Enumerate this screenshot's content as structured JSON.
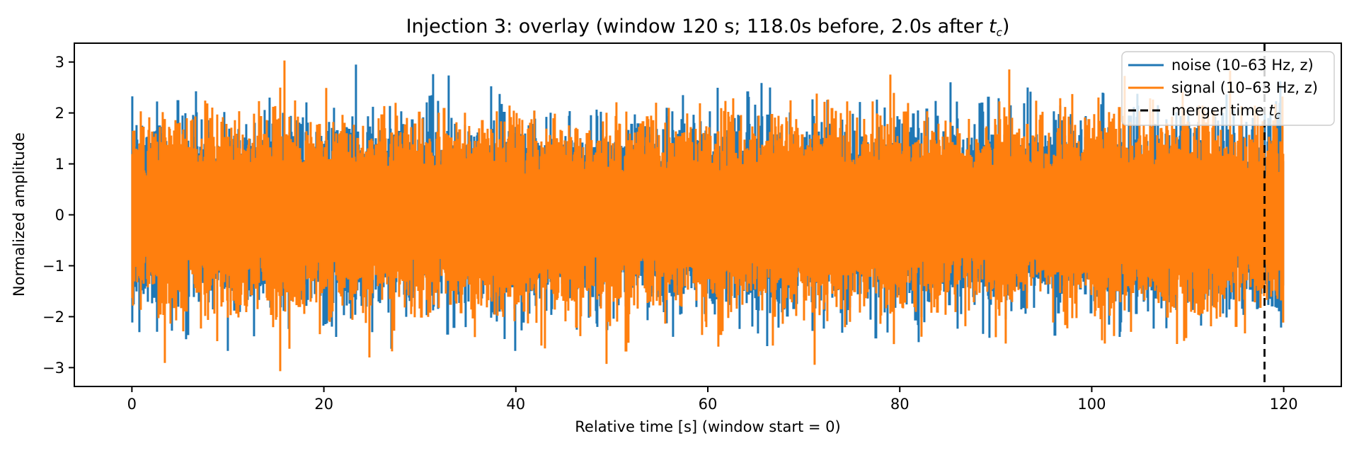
{
  "figure": {
    "title": {
      "before": "Injection 3: overlay (window 120 s; 118.0s before, 2.0s after ",
      "var": "t",
      "sub": "c",
      "after": ")"
    },
    "xlabel": "Relative time [s] (window start = 0)",
    "ylabel": "Normalized amplitude"
  },
  "legend": {
    "entries": [
      {
        "label": "noise (10–63 Hz, z)",
        "color": "#1f77b4",
        "style": "solid"
      },
      {
        "label": "signal (10–63 Hz, z)",
        "color": "#ff7f0e",
        "style": "solid"
      },
      {
        "label_before": "merger time ",
        "label_var": "t",
        "label_sub": "c",
        "color": "#000000",
        "style": "dashed"
      }
    ]
  },
  "chart_data": {
    "type": "line",
    "title": "Injection 3: overlay (window 120 s; 118.0s before, 2.0s after t_c)",
    "xlabel": "Relative time [s] (window start = 0)",
    "ylabel": "Normalized amplitude",
    "xticks": [
      0,
      20,
      40,
      60,
      80,
      100,
      120
    ],
    "yticks": [
      -3,
      -2,
      -1,
      0,
      1,
      2,
      3
    ],
    "xlim": [
      -6,
      126
    ],
    "ylim": [
      -3.37,
      3.37
    ],
    "x_range_s": [
      0,
      120
    ],
    "window_s": 120,
    "seconds_before": 118.0,
    "seconds_after": 2.0,
    "merger_time_s": 118,
    "grid": false,
    "legend_position": "upper right",
    "series": [
      {
        "name": "noise (10–63 Hz, z)",
        "color": "#1f77b4",
        "kind": "bandlimited_gaussian_noise",
        "band_hz": [
          10,
          63
        ],
        "zscored": true,
        "peak_abs": 2.95,
        "seed": 1337
      },
      {
        "name": "signal (10–63 Hz, z)",
        "color": "#ff7f0e",
        "kind": "bandlimited_gaussian_noise",
        "band_hz": [
          10,
          63
        ],
        "zscored": true,
        "peak_abs": 3.07,
        "seed": 4242
      }
    ],
    "merger_line": {
      "x": 118,
      "color": "#000000",
      "style": "dashed"
    }
  },
  "colors": {
    "noise": "#1f77b4",
    "signal": "#ff7f0e",
    "merger": "#000000",
    "axes": "#000000",
    "legend_border": "#cccccc",
    "background": "#ffffff"
  }
}
